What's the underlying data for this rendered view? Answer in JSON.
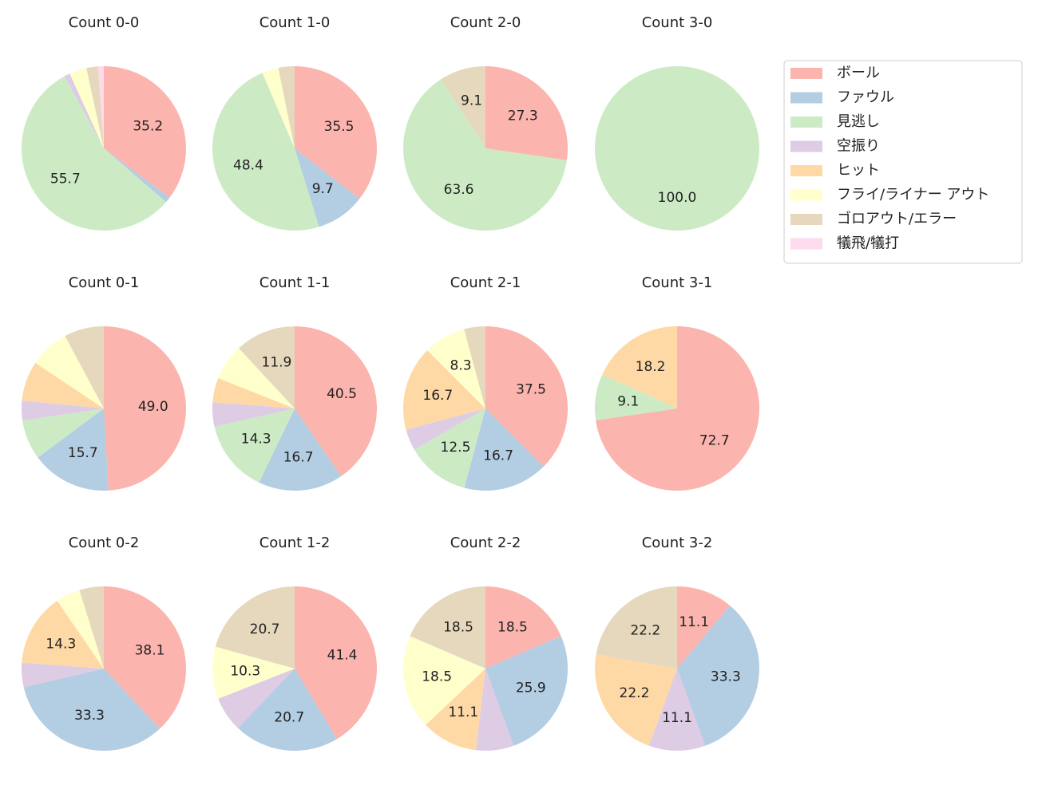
{
  "legend": {
    "position": "upper right",
    "labels": [
      "ボール",
      "ファウル",
      "見逃し",
      "空振り",
      "ヒット",
      "フライ/ライナー アウト",
      "ゴロアウト/エラー",
      "犠飛/犠打"
    ],
    "colors": [
      "#fbb4ae",
      "#b3cde3",
      "#ccebc5",
      "#decbe4",
      "#fed9a6",
      "#ffffcc",
      "#e5d8bd",
      "#fddaec"
    ]
  },
  "chart_data": [
    {
      "type": "pie",
      "title": "Count 0-0",
      "values": [
        35.2,
        1.1,
        55.7,
        1.1,
        0,
        3.4,
        2.3,
        1.1
      ],
      "value_labels": [
        "35.2",
        null,
        "55.7",
        null,
        null,
        null,
        null,
        null
      ]
    },
    {
      "type": "pie",
      "title": "Count 1-0",
      "values": [
        35.5,
        9.7,
        48.4,
        0,
        0,
        3.2,
        3.2,
        0
      ],
      "value_labels": [
        "35.5",
        "9.7",
        "48.4",
        null,
        null,
        null,
        null,
        null
      ]
    },
    {
      "type": "pie",
      "title": "Count 2-0",
      "values": [
        27.3,
        0,
        63.6,
        0,
        0,
        0,
        9.1,
        0
      ],
      "value_labels": [
        "27.3",
        null,
        "63.6",
        null,
        null,
        null,
        "9.1",
        null
      ]
    },
    {
      "type": "pie",
      "title": "Count 3-0",
      "values": [
        0,
        0,
        100.0,
        0,
        0,
        0,
        0,
        0
      ],
      "value_labels": [
        null,
        null,
        "100.0",
        null,
        null,
        null,
        null,
        null
      ]
    },
    {
      "type": "pie",
      "title": "Count 0-1",
      "values": [
        49.0,
        15.7,
        7.8,
        3.9,
        7.8,
        7.8,
        7.8,
        0
      ],
      "value_labels": [
        "49.0",
        "15.7",
        null,
        null,
        null,
        null,
        null,
        null
      ]
    },
    {
      "type": "pie",
      "title": "Count 1-1",
      "values": [
        40.5,
        16.7,
        14.3,
        4.8,
        4.8,
        7.1,
        11.9,
        0
      ],
      "value_labels": [
        "40.5",
        "16.7",
        "14.3",
        null,
        null,
        null,
        "11.9",
        null
      ]
    },
    {
      "type": "pie",
      "title": "Count 2-1",
      "values": [
        37.5,
        16.7,
        12.5,
        4.2,
        16.7,
        8.3,
        4.2,
        0
      ],
      "value_labels": [
        "37.5",
        "16.7",
        "12.5",
        null,
        "16.7",
        "8.3",
        null,
        null
      ]
    },
    {
      "type": "pie",
      "title": "Count 3-1",
      "values": [
        72.7,
        0,
        9.1,
        0,
        18.2,
        0,
        0,
        0
      ],
      "value_labels": [
        "72.7",
        null,
        "9.1",
        null,
        "18.2",
        null,
        null,
        null
      ]
    },
    {
      "type": "pie",
      "title": "Count 0-2",
      "values": [
        38.1,
        33.3,
        0,
        4.8,
        14.3,
        4.8,
        4.8,
        0
      ],
      "value_labels": [
        "38.1",
        "33.3",
        null,
        null,
        "14.3",
        null,
        null,
        null
      ]
    },
    {
      "type": "pie",
      "title": "Count 1-2",
      "values": [
        41.4,
        20.7,
        0,
        6.9,
        0,
        10.3,
        20.7,
        0
      ],
      "value_labels": [
        "41.4",
        "20.7",
        null,
        null,
        null,
        "10.3",
        "20.7",
        null
      ]
    },
    {
      "type": "pie",
      "title": "Count 2-2",
      "values": [
        18.5,
        25.9,
        0,
        7.4,
        11.1,
        18.5,
        18.5,
        0
      ],
      "value_labels": [
        "18.5",
        "25.9",
        null,
        null,
        "11.1",
        "18.5",
        "18.5",
        null
      ]
    },
    {
      "type": "pie",
      "title": "Count 3-2",
      "values": [
        11.1,
        33.3,
        0,
        11.1,
        22.2,
        0,
        22.2,
        0
      ],
      "value_labels": [
        "11.1",
        "33.3",
        null,
        "11.1",
        "22.2",
        null,
        "22.2",
        null
      ]
    }
  ]
}
